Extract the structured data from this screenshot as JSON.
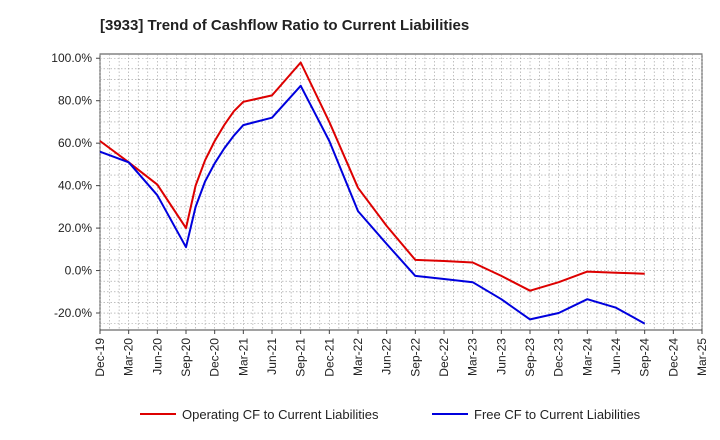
{
  "chart_data": {
    "type": "line",
    "title": "[3933]  Trend of Cashflow Ratio to Current Liabilities",
    "xlabel": "",
    "ylabel": "",
    "ylim": [
      -28,
      102
    ],
    "grid": true,
    "legend_position": "bottom",
    "x_ticks": [
      "Dec-19",
      "Mar-20",
      "Jun-20",
      "Sep-20",
      "Dec-20",
      "Mar-21",
      "Jun-21",
      "Sep-21",
      "Dec-21",
      "Mar-22",
      "Jun-22",
      "Sep-22",
      "Dec-22",
      "Mar-23",
      "Jun-23",
      "Sep-23",
      "Dec-23",
      "Mar-24",
      "Jun-24",
      "Sep-24",
      "Dec-24",
      "Mar-25"
    ],
    "y_ticks": [
      -20,
      0,
      20,
      40,
      60,
      80,
      100
    ],
    "y_tick_labels": [
      "-20.0%",
      "0.0%",
      "20.0%",
      "40.0%",
      "60.0%",
      "80.0%",
      "100.0%"
    ],
    "series": [
      {
        "name": "Operating CF to Current Liabilities",
        "color": "#dd0000",
        "points": [
          [
            "Dec-19",
            61
          ],
          [
            "Mar-20",
            51
          ],
          [
            "Jun-20",
            40.5
          ],
          [
            "Sep-20",
            20
          ],
          [
            "Oct-20",
            40
          ],
          [
            "Nov-20",
            52
          ],
          [
            "Dec-20",
            61
          ],
          [
            "Jan-21",
            68.5
          ],
          [
            "Feb-21",
            75
          ],
          [
            "Mar-21",
            79.5
          ],
          [
            "Jun-21",
            82.5
          ],
          [
            "Sep-21",
            98
          ],
          [
            "Dec-21",
            70
          ],
          [
            "Mar-22",
            39
          ],
          [
            "Jun-22",
            21
          ],
          [
            "Sep-22",
            5
          ],
          [
            "Dec-22",
            4.5
          ],
          [
            "Mar-23",
            3.8
          ],
          [
            "Jun-23",
            -2.5
          ],
          [
            "Sep-23",
            -9.5
          ],
          [
            "Dec-23",
            -5.5
          ],
          [
            "Mar-24",
            -0.5
          ],
          [
            "Jun-24",
            -1
          ],
          [
            "Sep-24",
            -1.5
          ]
        ]
      },
      {
        "name": "Free CF to Current Liabilities",
        "color": "#0000dd",
        "points": [
          [
            "Dec-19",
            56
          ],
          [
            "Mar-20",
            51
          ],
          [
            "Jun-20",
            35.5
          ],
          [
            "Sep-20",
            11
          ],
          [
            "Oct-20",
            30
          ],
          [
            "Nov-20",
            42
          ],
          [
            "Dec-20",
            50.5
          ],
          [
            "Jan-21",
            57.5
          ],
          [
            "Feb-21",
            63.5
          ],
          [
            "Mar-21",
            68.5
          ],
          [
            "Jun-21",
            72
          ],
          [
            "Sep-21",
            87
          ],
          [
            "Dec-21",
            61
          ],
          [
            "Mar-22",
            28
          ],
          [
            "Jun-22",
            12.5
          ],
          [
            "Sep-22",
            -2.5
          ],
          [
            "Dec-22",
            -4
          ],
          [
            "Mar-23",
            -5.5
          ],
          [
            "Jun-23",
            -13.5
          ],
          [
            "Sep-23",
            -23
          ],
          [
            "Dec-23",
            -20
          ],
          [
            "Mar-24",
            -13.5
          ],
          [
            "Jun-24",
            -17.5
          ],
          [
            "Sep-24",
            -25
          ]
        ]
      }
    ]
  }
}
